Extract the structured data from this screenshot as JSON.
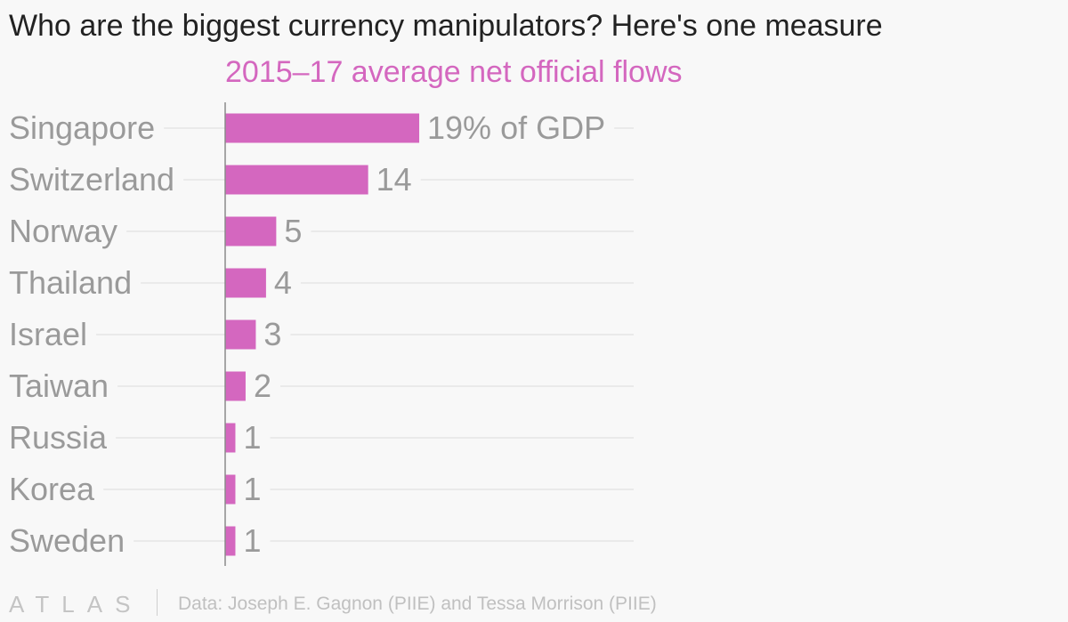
{
  "header": {
    "title": "Who are the biggest currency manipulators? Here's one measure",
    "subtitle": "2015–17 average net official flows"
  },
  "footer": {
    "logo": "ATLAS",
    "source": "Data: Joseph E. Gagnon (PIIE) and Tessa Morrison (PIIE)"
  },
  "colors": {
    "bar": "#d467bf",
    "subtitle": "#d467bf",
    "label": "#9a9a9a",
    "grid": "#e6e6e6",
    "axis": "#8a8a8a"
  },
  "chart_data": {
    "type": "bar",
    "orientation": "horizontal",
    "title": "Who are the biggest currency manipulators? Here's one measure",
    "subtitle": "2015–17 average net official flows",
    "xlabel": "",
    "ylabel": "",
    "unit": "% of GDP",
    "grid": true,
    "xlim": [
      0,
      40
    ],
    "categories": [
      "Singapore",
      "Switzerland",
      "Norway",
      "Thailand",
      "Israel",
      "Taiwan",
      "Russia",
      "Korea",
      "Sweden"
    ],
    "values": [
      19,
      14,
      5,
      4,
      3,
      2,
      1,
      1,
      1
    ],
    "value_labels": [
      "19% of GDP",
      "14",
      "5",
      "4",
      "3",
      "2",
      "1",
      "1",
      "1"
    ]
  }
}
